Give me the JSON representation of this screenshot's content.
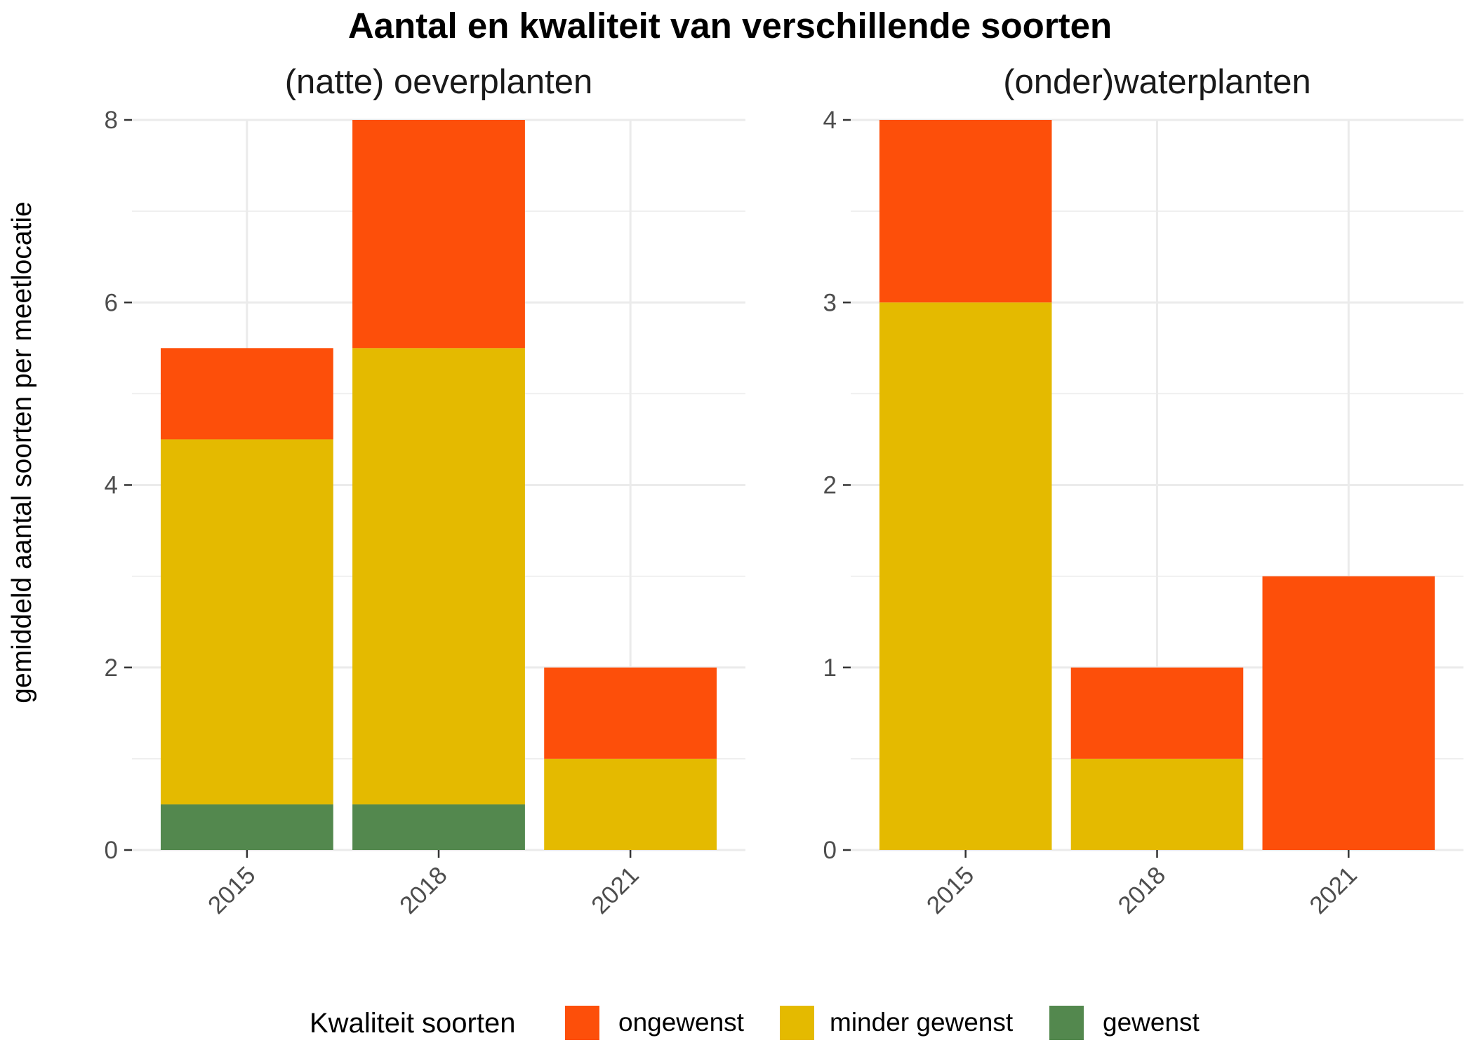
{
  "title": "Aantal en kwaliteit van verschillende soorten",
  "ylabel": "gemiddeld aantal soorten per meetlocatie",
  "legend": {
    "title": "Kwaliteit soorten",
    "items": [
      {
        "label": "ongewenst",
        "color": "#FD4F0A"
      },
      {
        "label": "minder gewenst",
        "color": "#E4BA00"
      },
      {
        "label": "gewenst",
        "color": "#53884E"
      }
    ]
  },
  "chart_data": [
    {
      "type": "bar",
      "stacked": true,
      "title": "(natte) oeverplanten",
      "categories": [
        "2015",
        "2018",
        "2021"
      ],
      "ylim": [
        0,
        8
      ],
      "yticks": [
        0,
        2,
        4,
        6,
        8
      ],
      "grid": true,
      "legend_position": "bottom",
      "series": [
        {
          "name": "gewenst",
          "values": [
            0.5,
            0.5,
            0
          ]
        },
        {
          "name": "minder gewenst",
          "values": [
            4,
            5,
            1
          ]
        },
        {
          "name": "ongewenst",
          "values": [
            1,
            2.5,
            1
          ]
        }
      ]
    },
    {
      "type": "bar",
      "stacked": true,
      "title": "(onder)waterplanten",
      "categories": [
        "2015",
        "2018",
        "2021"
      ],
      "ylim": [
        0,
        4
      ],
      "yticks": [
        0,
        1,
        2,
        3,
        4
      ],
      "grid": true,
      "legend_position": "bottom",
      "series": [
        {
          "name": "gewenst",
          "values": [
            0,
            0,
            0
          ]
        },
        {
          "name": "minder gewenst",
          "values": [
            3,
            0.5,
            0
          ]
        },
        {
          "name": "ongewenst",
          "values": [
            1,
            0.5,
            1.5
          ]
        }
      ]
    }
  ]
}
